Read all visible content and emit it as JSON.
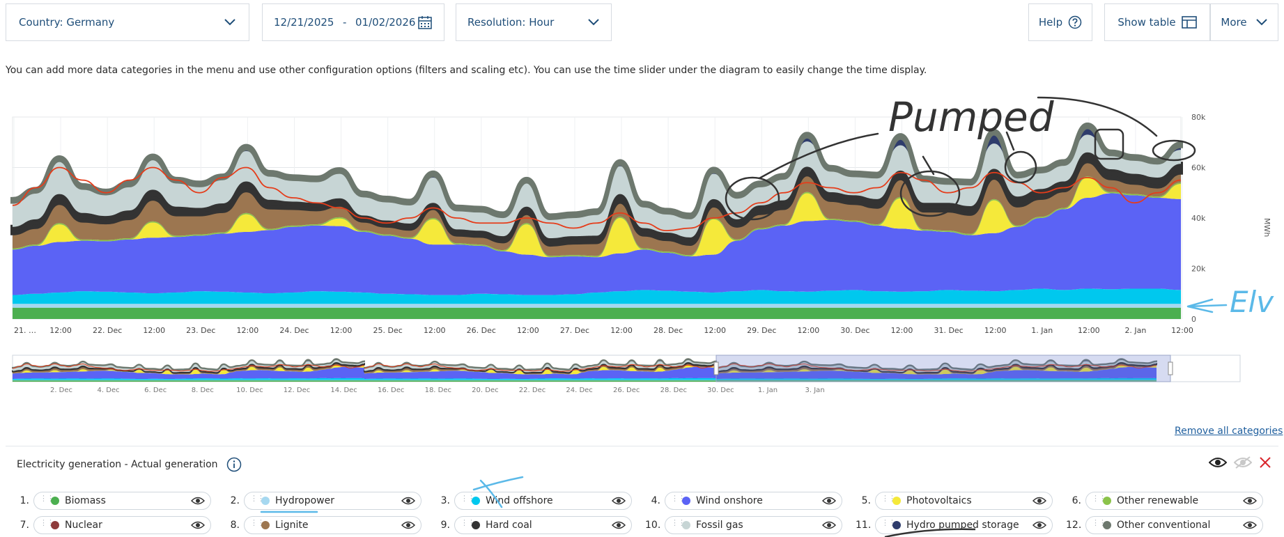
{
  "controls": {
    "country": "Country: Germany",
    "date_from": "12/21/2025",
    "date_sep": "-",
    "date_to": "01/02/2026",
    "resolution": "Resolution: Hour",
    "help": "Help",
    "show_table": "Show table",
    "more": "More"
  },
  "info_text": "You can add more data categories in the menu and use other configuration options (filters and scaling etc). You can use the time slider under the diagram to easily change the time display.",
  "chart_data": {
    "type": "area",
    "stacked": true,
    "ylabel": "MWh",
    "ylim": [
      0,
      80000
    ],
    "y_ticks": [
      "0",
      "20k",
      "40k",
      "60k",
      "80k"
    ],
    "x_ticks": [
      "21. …",
      "12:00",
      "22. Dec",
      "12:00",
      "23. Dec",
      "12:00",
      "24. Dec",
      "12:00",
      "25. Dec",
      "12:00",
      "26. Dec",
      "12:00",
      "27. Dec",
      "12:00",
      "28. Dec",
      "12:00",
      "29. Dec",
      "12:00",
      "30. Dec",
      "12:00",
      "31. Dec",
      "12:00",
      "1. Jan",
      "12:00",
      "2. Jan",
      "12:00"
    ],
    "x_points": [
      "21. Dec 00:00",
      "21. Dec 06:00",
      "21. Dec 12:00",
      "21. Dec 18:00",
      "22. Dec 00:00",
      "22. Dec 06:00",
      "22. Dec 12:00",
      "22. Dec 18:00",
      "23. Dec 00:00",
      "23. Dec 06:00",
      "23. Dec 12:00",
      "23. Dec 18:00",
      "24. Dec 00:00",
      "24. Dec 06:00",
      "24. Dec 12:00",
      "24. Dec 18:00",
      "25. Dec 00:00",
      "25. Dec 06:00",
      "25. Dec 12:00",
      "25. Dec 18:00",
      "26. Dec 00:00",
      "26. Dec 06:00",
      "26. Dec 12:00",
      "26. Dec 18:00",
      "27. Dec 00:00",
      "27. Dec 06:00",
      "27. Dec 12:00",
      "27. Dec 18:00",
      "28. Dec 00:00",
      "28. Dec 06:00",
      "28. Dec 12:00",
      "28. Dec 18:00",
      "29. Dec 00:00",
      "29. Dec 06:00",
      "29. Dec 12:00",
      "29. Dec 18:00",
      "30. Dec 00:00",
      "30. Dec 06:00",
      "30. Dec 12:00",
      "30. Dec 18:00",
      "31. Dec 00:00",
      "31. Dec 06:00",
      "31. Dec 12:00",
      "31. Dec 18:00",
      "1. Jan 00:00",
      "1. Jan 06:00",
      "1. Jan 12:00",
      "1. Jan 18:00",
      "2. Jan 00:00",
      "2. Jan 06:00",
      "2. Jan 12:00"
    ],
    "series": [
      {
        "name": "Biomass",
        "color": "#4caf50",
        "values": [
          4500,
          4500,
          4500,
          4500,
          4500,
          4500,
          4500,
          4500,
          4500,
          4500,
          4500,
          4500,
          4500,
          4500,
          4500,
          4500,
          4500,
          4500,
          4500,
          4500,
          4500,
          4500,
          4500,
          4500,
          4500,
          4500,
          4500,
          4500,
          4500,
          4500,
          4500,
          4500,
          4500,
          4500,
          4500,
          4500,
          4500,
          4500,
          4500,
          4500,
          4500,
          4500,
          4500,
          4500,
          4500,
          4500,
          4500,
          4500,
          4500,
          4500,
          4500
        ]
      },
      {
        "name": "Hydropower",
        "color": "#a6d8f0",
        "values": [
          1500,
          1500,
          1500,
          1500,
          1500,
          1500,
          1500,
          1500,
          1500,
          1500,
          1500,
          1500,
          1500,
          1500,
          1500,
          1500,
          1500,
          1500,
          1500,
          1500,
          1500,
          1500,
          1500,
          1500,
          1500,
          1500,
          1500,
          1500,
          1500,
          1500,
          1500,
          1500,
          1500,
          1500,
          1500,
          1500,
          1500,
          1500,
          1500,
          1500,
          1500,
          1500,
          1500,
          1500,
          1500,
          1500,
          1500,
          1500,
          1500,
          1500,
          1500
        ]
      },
      {
        "name": "Wind offshore",
        "color": "#00c8ee",
        "values": [
          3500,
          4000,
          4500,
          5000,
          4800,
          4500,
          4200,
          4500,
          5000,
          4800,
          4500,
          4200,
          4500,
          5000,
          4800,
          4500,
          4000,
          3800,
          3500,
          3500,
          4000,
          3800,
          3500,
          3500,
          3800,
          4500,
          5000,
          5500,
          5200,
          4800,
          4500,
          5000,
          5500,
          5000,
          4800,
          5200,
          5500,
          5000,
          4800,
          5000,
          5500,
          5200,
          5000,
          5500,
          6000,
          5500,
          6000,
          5800,
          6000,
          6000,
          5500
        ]
      },
      {
        "name": "Wind onshore",
        "color": "#5b63f5",
        "values": [
          18000,
          19000,
          20000,
          20000,
          20000,
          21000,
          22000,
          22000,
          22000,
          23000,
          24000,
          25000,
          26000,
          26000,
          26000,
          24000,
          23000,
          22000,
          20000,
          20000,
          19000,
          17000,
          16000,
          15000,
          15000,
          14000,
          15000,
          16000,
          15000,
          14000,
          15000,
          20000,
          24000,
          26000,
          28000,
          28000,
          27000,
          26000,
          25000,
          24000,
          23000,
          22000,
          23000,
          25000,
          28000,
          32000,
          36000,
          38000,
          37000,
          36000,
          36000
        ]
      },
      {
        "name": "Photovoltaics",
        "color": "#f5e93a",
        "values": [
          0,
          0,
          7000,
          0,
          0,
          0,
          6000,
          0,
          0,
          0,
          7000,
          0,
          0,
          0,
          3000,
          0,
          0,
          0,
          10000,
          0,
          0,
          0,
          12000,
          0,
          0,
          0,
          14000,
          0,
          0,
          0,
          14000,
          0,
          0,
          0,
          11000,
          0,
          0,
          0,
          12000,
          0,
          0,
          0,
          13000,
          0,
          0,
          0,
          8000,
          0,
          0,
          0,
          6000
        ]
      },
      {
        "name": "Other renewable",
        "color": "#8bc34a",
        "values": [
          500,
          500,
          500,
          500,
          500,
          500,
          500,
          500,
          500,
          500,
          500,
          500,
          500,
          500,
          500,
          500,
          500,
          500,
          500,
          500,
          500,
          500,
          500,
          500,
          500,
          500,
          500,
          500,
          500,
          500,
          500,
          500,
          500,
          500,
          500,
          500,
          500,
          500,
          500,
          500,
          500,
          500,
          500,
          500,
          500,
          500,
          500,
          500,
          500,
          500,
          500
        ]
      },
      {
        "name": "Nuclear",
        "color": "#8d3b3b",
        "values": [
          0,
          0,
          0,
          0,
          0,
          0,
          0,
          0,
          0,
          0,
          0,
          0,
          0,
          0,
          0,
          0,
          0,
          0,
          0,
          0,
          0,
          0,
          0,
          0,
          0,
          0,
          0,
          0,
          0,
          0,
          0,
          0,
          0,
          0,
          0,
          0,
          0,
          0,
          0,
          0,
          0,
          0,
          0,
          0,
          0,
          0,
          0,
          0,
          0,
          0,
          0
        ]
      },
      {
        "name": "Lignite",
        "color": "#9c7650",
        "values": [
          6000,
          7000,
          8000,
          7500,
          7000,
          8000,
          9000,
          8500,
          8000,
          8500,
          9000,
          8500,
          7000,
          6000,
          5000,
          4000,
          3500,
          3500,
          4000,
          3500,
          3500,
          3500,
          4000,
          4500,
          5000,
          5500,
          6000,
          5500,
          5000,
          4500,
          5000,
          5500,
          6000,
          6500,
          7000,
          7500,
          7000,
          7000,
          7500,
          7500,
          8000,
          8000,
          8500,
          8000,
          7500,
          7000,
          6000,
          5500,
          4500,
          4000,
          4000
        ]
      },
      {
        "name": "Hard coal",
        "color": "#333333",
        "values": [
          2500,
          3000,
          3500,
          3000,
          2500,
          3000,
          3500,
          3000,
          2500,
          3000,
          3500,
          3000,
          2500,
          2500,
          2500,
          2000,
          2000,
          2000,
          2000,
          2000,
          2000,
          2000,
          2500,
          2500,
          2500,
          2500,
          3000,
          2500,
          2500,
          2500,
          2500,
          2500,
          3000,
          3000,
          3000,
          3000,
          3000,
          3000,
          3000,
          3000,
          3000,
          3000,
          3500,
          3500,
          3500,
          3500,
          3500,
          3500,
          3500,
          3500,
          3500
        ]
      },
      {
        "name": "Fossil gas",
        "color": "#c7d5d5",
        "values": [
          10000,
          11000,
          13000,
          10000,
          9000,
          10000,
          12000,
          10000,
          9000,
          10000,
          12000,
          10000,
          9000,
          9000,
          10000,
          8000,
          8000,
          8000,
          10000,
          8000,
          8000,
          8000,
          10000,
          8000,
          8000,
          9000,
          11000,
          9000,
          8000,
          8000,
          10000,
          9000,
          8000,
          9000,
          10000,
          9000,
          8000,
          9000,
          10000,
          9000,
          8000,
          9000,
          10000,
          8000,
          7000,
          7000,
          7000,
          6000,
          6000,
          6000,
          5500
        ]
      },
      {
        "name": "Hydro pumped storage",
        "color": "#2e3c6c",
        "values": [
          0,
          0,
          500,
          0,
          0,
          0,
          500,
          0,
          0,
          0,
          1000,
          0,
          0,
          0,
          500,
          0,
          0,
          0,
          1000,
          0,
          0,
          0,
          0,
          0,
          0,
          0,
          1000,
          0,
          0,
          0,
          1000,
          0,
          0,
          0,
          2000,
          0,
          0,
          0,
          3000,
          0,
          0,
          0,
          4000,
          0,
          0,
          0,
          3000,
          0,
          0,
          0,
          1500
        ]
      },
      {
        "name": "Other conventional",
        "color": "#6d786e",
        "values": [
          1000,
          1000,
          1000,
          1000,
          1000,
          1000,
          1000,
          1000,
          1000,
          1000,
          1000,
          1000,
          1000,
          1000,
          1000,
          1000,
          1000,
          1000,
          1000,
          1000,
          1000,
          1000,
          1000,
          1000,
          1000,
          1000,
          1000,
          1000,
          1000,
          1000,
          1000,
          1000,
          1000,
          1000,
          1000,
          1000,
          1000,
          1000,
          1000,
          1000,
          1000,
          1000,
          1000,
          1000,
          1000,
          1000,
          1000,
          1000,
          1000,
          1000,
          1000
        ]
      }
    ],
    "consumption_line": {
      "color": "#e53c1a",
      "values": [
        45000,
        52000,
        60000,
        55000,
        50000,
        55000,
        60000,
        55000,
        50000,
        56000,
        60000,
        52000,
        48000,
        46000,
        44000,
        40000,
        38000,
        40000,
        44000,
        40000,
        38000,
        38000,
        40000,
        38000,
        36000,
        38000,
        42000,
        38000,
        35000,
        36000,
        40000,
        42000,
        46000,
        50000,
        54000,
        52000,
        50000,
        52000,
        58000,
        55000,
        50000,
        52000,
        58000,
        54000,
        50000,
        52000,
        56000,
        52000,
        46000,
        50000,
        55000
      ]
    },
    "annotations": [
      "Pumped",
      "Elv"
    ]
  },
  "navigator": {
    "ticks": [
      "2. Dec",
      "4. Dec",
      "6. Dec",
      "8. Dec",
      "10. Dec",
      "12. Dec",
      "14. Dec",
      "16. Dec",
      "18. Dec",
      "20. Dec",
      "22. Dec",
      "24. Dec",
      "26. Dec",
      "28. Dec",
      "30. Dec",
      "1. Jan",
      "3. Jan"
    ]
  },
  "remove_all": "Remove all categories",
  "section": {
    "title": "Electricity generation - Actual generation"
  },
  "legend": [
    {
      "num": "1.",
      "name": "Biomass",
      "color": "#4caf50"
    },
    {
      "num": "2.",
      "name": "Hydropower",
      "color": "#a6d8f0"
    },
    {
      "num": "3.",
      "name": "Wind offshore",
      "color": "#00c8ee"
    },
    {
      "num": "4.",
      "name": "Wind onshore",
      "color": "#5b63f5"
    },
    {
      "num": "5.",
      "name": "Photovoltaics",
      "color": "#f5e93a"
    },
    {
      "num": "6.",
      "name": "Other renewable",
      "color": "#8bc34a"
    },
    {
      "num": "7.",
      "name": "Nuclear",
      "color": "#8d3b3b"
    },
    {
      "num": "8.",
      "name": "Lignite",
      "color": "#9c7650"
    },
    {
      "num": "9.",
      "name": "Hard coal",
      "color": "#333333"
    },
    {
      "num": "10.",
      "name": "Fossil gas",
      "color": "#c7d5d5"
    },
    {
      "num": "11.",
      "name": "Hydro pumped storage",
      "color": "#2e3c6c"
    },
    {
      "num": "12.",
      "name": "Other conventional",
      "color": "#6d786e"
    }
  ]
}
